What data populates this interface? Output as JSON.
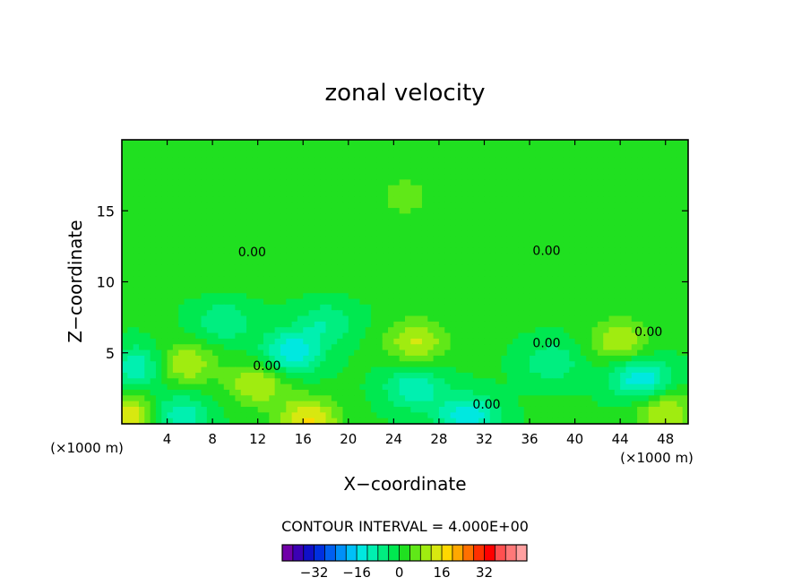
{
  "chart_data": {
    "type": "heatmap",
    "title": "zonal velocity",
    "xlabel": "X−coordinate",
    "ylabel": "Z−coordinate",
    "x_units_left": "(×1000 m)",
    "x_units_right": "(×1000 m)",
    "xlim": [
      0,
      50
    ],
    "ylim": [
      0,
      20
    ],
    "x_ticks": [
      4,
      8,
      12,
      16,
      20,
      24,
      28,
      32,
      36,
      40,
      44,
      48
    ],
    "y_ticks": [
      5,
      10,
      15
    ],
    "contour_labels": [
      {
        "text": "0.00",
        "x": 11.5,
        "z": 12.1
      },
      {
        "text": "0.00",
        "x": 37.5,
        "z": 12.2
      },
      {
        "text": "0.00",
        "x": 12.8,
        "z": 4.1
      },
      {
        "text": "0.00",
        "x": 37.5,
        "z": 5.7
      },
      {
        "text": "0.00",
        "x": 46.5,
        "z": 6.5
      },
      {
        "text": "0.00",
        "x": 32.2,
        "z": 1.4
      }
    ],
    "field_features": [
      {
        "x": 15.0,
        "z": 5.0,
        "value": -16
      },
      {
        "x": 1.5,
        "z": 4.0,
        "value": -12
      },
      {
        "x": 5.0,
        "z": 0.6,
        "value": -12
      },
      {
        "x": 25.8,
        "z": 2.5,
        "value": -12
      },
      {
        "x": 30.5,
        "z": 0.5,
        "value": -16
      },
      {
        "x": 45.8,
        "z": 3.2,
        "value": -16
      },
      {
        "x": 38.0,
        "z": 4.3,
        "value": -8
      },
      {
        "x": 18.0,
        "z": 7.1,
        "value": -8
      },
      {
        "x": 9.0,
        "z": 7.2,
        "value": -8
      },
      {
        "x": 5.5,
        "z": 4.2,
        "value": 12
      },
      {
        "x": 26.0,
        "z": 5.8,
        "value": 12
      },
      {
        "x": 44.0,
        "z": 5.8,
        "value": 12
      },
      {
        "x": 12.0,
        "z": 2.8,
        "value": 12
      },
      {
        "x": 0.5,
        "z": 0.6,
        "value": 16
      },
      {
        "x": 16.5,
        "z": 0.3,
        "value": 16
      },
      {
        "x": 48.0,
        "z": 0.8,
        "value": 12
      },
      {
        "x": 3.0,
        "z": 12.3,
        "value": 0
      },
      {
        "x": 25.0,
        "z": 16.0,
        "value": 4
      }
    ],
    "contour_interval_label": "CONTOUR INTERVAL = 4.000E+00",
    "colorbar": {
      "colors": [
        "#7000a8",
        "#3c00b4",
        "#1010c8",
        "#0030e0",
        "#0060f0",
        "#0090f8",
        "#00c0f8",
        "#00e8e0",
        "#00f0b0",
        "#00ee80",
        "#00e850",
        "#20e020",
        "#60e818",
        "#a0ec10",
        "#d8e810",
        "#ffd800",
        "#ffa800",
        "#ff7000",
        "#ff3000",
        "#ff0000",
        "#ff5050",
        "#ff7878",
        "#ffa0a0"
      ],
      "tick_values": [
        -32,
        -16,
        0,
        16,
        32
      ],
      "tick_labels": [
        "−32",
        "−16",
        "0",
        "16",
        "32"
      ],
      "vmin": -44,
      "vmax": 48
    }
  }
}
